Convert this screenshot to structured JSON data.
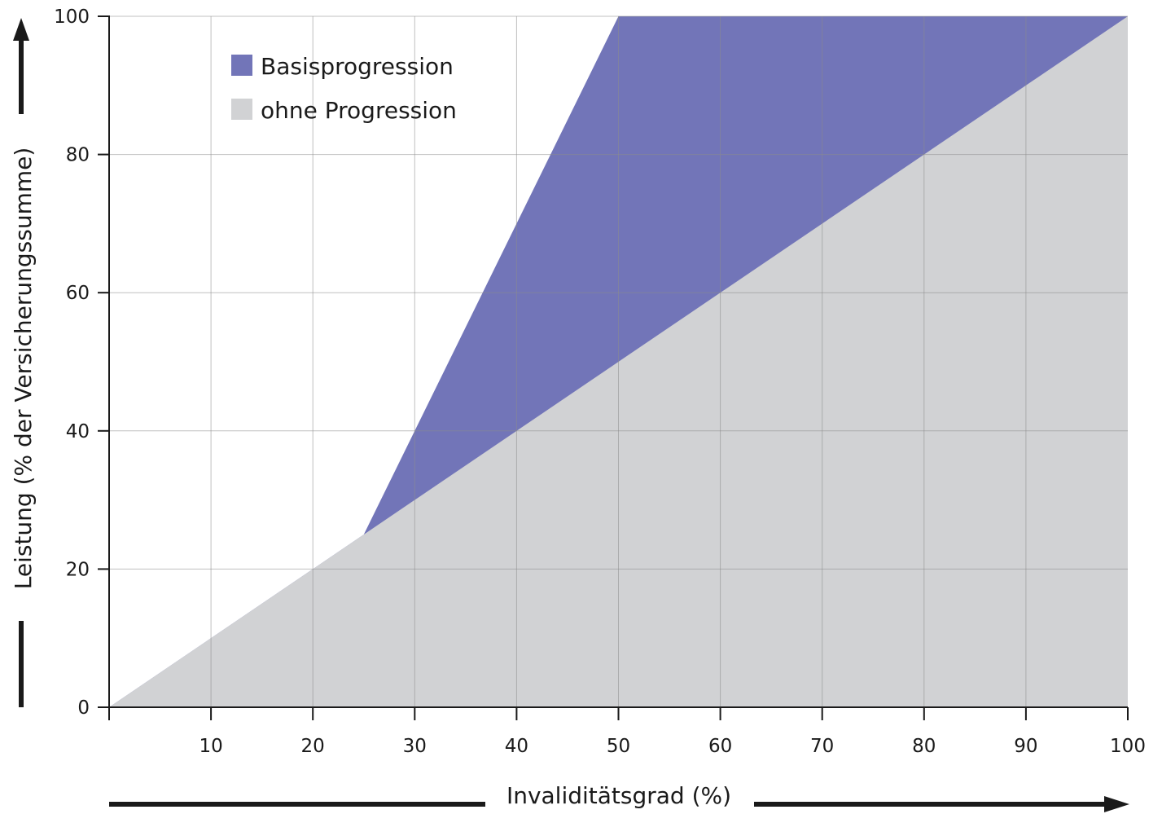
{
  "chart_data": {
    "type": "area",
    "xlabel": "Invaliditätsgrad (%)",
    "ylabel": "Leistung (% der Versicherungssumme)",
    "xlim": [
      0,
      100
    ],
    "ylim": [
      0,
      100
    ],
    "x_ticks": [
      10,
      20,
      30,
      40,
      50,
      60,
      70,
      80,
      90,
      100
    ],
    "y_ticks": [
      0,
      20,
      40,
      60,
      80,
      100
    ],
    "grid": true,
    "legend_position": "top-left",
    "series": [
      {
        "name": "Basisprogression",
        "color": "#7275b8",
        "x": [
          0,
          25,
          30,
          40,
          50,
          100
        ],
        "y": [
          0,
          25,
          40,
          70,
          100,
          100
        ]
      },
      {
        "name": "ohne Progression",
        "color": "#d1d2d4",
        "x": [
          0,
          100
        ],
        "y": [
          0,
          100
        ]
      }
    ]
  }
}
